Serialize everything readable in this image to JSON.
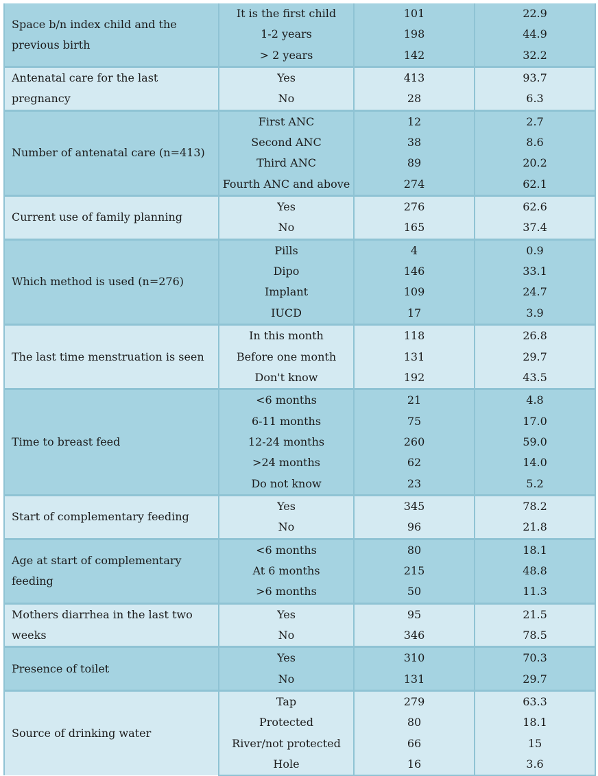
{
  "table": {
    "groups": [
      {
        "variable": "Space b/n index child and the previous birth",
        "rows": [
          {
            "category": "It is the first child",
            "n": "101",
            "pct": "22.9"
          },
          {
            "category": "1-2 years",
            "n": "198",
            "pct": "44.9"
          },
          {
            "category": "> 2 years",
            "n": "142",
            "pct": "32.2"
          }
        ]
      },
      {
        "variable": "Antenatal care for the last pregnancy",
        "rows": [
          {
            "category": "Yes",
            "n": "413",
            "pct": "93.7"
          },
          {
            "category": "No",
            "n": "28",
            "pct": "6.3"
          }
        ]
      },
      {
        "variable": "Number of antenatal care (n=413)",
        "rows": [
          {
            "category": "First ANC",
            "n": "12",
            "pct": "2.7"
          },
          {
            "category": "Second ANC",
            "n": "38",
            "pct": "8.6"
          },
          {
            "category": "Third ANC",
            "n": "89",
            "pct": "20.2"
          },
          {
            "category": "Fourth ANC and above",
            "n": "274",
            "pct": "62.1"
          }
        ]
      },
      {
        "variable": "Current use of family planning",
        "rows": [
          {
            "category": "Yes",
            "n": "276",
            "pct": "62.6"
          },
          {
            "category": "No",
            "n": "165",
            "pct": "37.4"
          }
        ]
      },
      {
        "variable": "Which method is used (n=276)",
        "rows": [
          {
            "category": "Pills",
            "n": "4",
            "pct": "0.9"
          },
          {
            "category": "Dipo",
            "n": "146",
            "pct": "33.1"
          },
          {
            "category": "Implant",
            "n": "109",
            "pct": "24.7"
          },
          {
            "category": "IUCD",
            "n": "17",
            "pct": "3.9"
          }
        ]
      },
      {
        "variable": "The last time menstruation is seen",
        "rows": [
          {
            "category": "In this month",
            "n": "118",
            "pct": "26.8"
          },
          {
            "category": "Before one month",
            "n": "131",
            "pct": "29.7"
          },
          {
            "category": "Don't know",
            "n": "192",
            "pct": "43.5"
          }
        ]
      },
      {
        "variable": "Time to breast feed",
        "rows": [
          {
            "category": "<6 months",
            "n": "21",
            "pct": "4.8"
          },
          {
            "category": "6-11 months",
            "n": "75",
            "pct": "17.0"
          },
          {
            "category": "12-24 months",
            "n": "260",
            "pct": "59.0"
          },
          {
            "category": ">24 months",
            "n": "62",
            "pct": "14.0"
          },
          {
            "category": "Do not know",
            "n": "23",
            "pct": "5.2"
          }
        ]
      },
      {
        "variable": "Start of complementary feeding",
        "rows": [
          {
            "category": "Yes",
            "n": "345",
            "pct": "78.2"
          },
          {
            "category": "No",
            "n": "96",
            "pct": "21.8"
          }
        ]
      },
      {
        "variable": "Age at start of complementary feeding",
        "rows": [
          {
            "category": "<6 months",
            "n": "80",
            "pct": "18.1"
          },
          {
            "category": "At 6 months",
            "n": "215",
            "pct": "48.8"
          },
          {
            "category": ">6 months",
            "n": "50",
            "pct": "11.3"
          }
        ]
      },
      {
        "variable": "Mothers diarrhea in the last two weeks",
        "rows": [
          {
            "category": "Yes",
            "n": "95",
            "pct": "21.5"
          },
          {
            "category": "No",
            "n": "346",
            "pct": "78.5"
          }
        ]
      },
      {
        "variable": "Presence of toilet",
        "rows": [
          {
            "category": "Yes",
            "n": "310",
            "pct": "70.3"
          },
          {
            "category": "No",
            "n": "131",
            "pct": "29.7"
          }
        ]
      },
      {
        "variable": "Source of drinking water",
        "rows": [
          {
            "category": "Tap",
            "n": "279",
            "pct": "63.3"
          },
          {
            "category": "Protected",
            "n": "80",
            "pct": "18.1"
          },
          {
            "category": "River/not protected",
            "n": "66",
            "pct": "15"
          },
          {
            "category": "Hole",
            "n": "16",
            "pct": "3.6"
          }
        ]
      }
    ]
  }
}
